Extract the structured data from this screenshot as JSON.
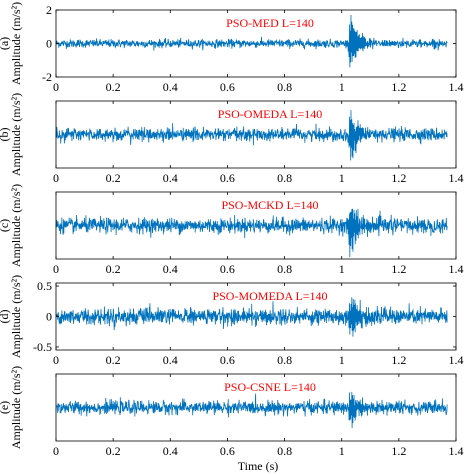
{
  "colors": {
    "signal": "#0072BD",
    "annotation": "#FF0000",
    "axis": "#000000"
  },
  "chart_data": {
    "type": "line",
    "xlabel": "Time (s)",
    "x_ticks": [
      "0",
      "0.2",
      "0.4",
      "0.6",
      "0.8",
      "1",
      "1.2",
      "1.4"
    ],
    "xlim": [
      0,
      1.4
    ],
    "signal_length_s": 1.37,
    "panels": [
      {
        "letter": "(a)",
        "ylabel": "Amplitude (m/s²)",
        "annotation": "PSO-MED L=140",
        "ylim": [
          -2,
          2
        ],
        "y_ticks": [
          2,
          0,
          -2
        ],
        "y_tick_labels": [
          "2",
          "0",
          "-2"
        ],
        "noise_amplitude": 0.22,
        "impulse_time_s": 1.035,
        "impulse_peak_pos": 1.95,
        "impulse_peak_neg": -1.6
      },
      {
        "letter": "(b)",
        "ylabel": "Amplitude (m/s²)",
        "annotation": "PSO-OMEDA L=140",
        "ylim": [
          -2,
          2
        ],
        "y_ticks": [],
        "y_tick_labels": [],
        "noise_amplitude": 0.35,
        "impulse_time_s": 1.035,
        "impulse_peak_pos": 1.3,
        "impulse_peak_neg": -1.9
      },
      {
        "letter": "(c)",
        "ylabel": "Amplitude (m/s²)",
        "annotation": "PSO-MCKD L=140",
        "ylim": [
          -2,
          2
        ],
        "y_ticks": [],
        "y_tick_labels": [],
        "noise_amplitude": 0.4,
        "impulse_time_s": 1.035,
        "impulse_peak_pos": 1.4,
        "impulse_peak_neg": -1.8
      },
      {
        "letter": "(d)",
        "ylabel": "Amplitude (m/s²)",
        "annotation": "PSO-MOMEDA L=140",
        "ylim": [
          -0.55,
          0.55
        ],
        "y_ticks": [
          0.5,
          0,
          -0.5
        ],
        "y_tick_labels": [
          "0.5",
          "0",
          "-0.5"
        ],
        "noise_amplitude": 0.12,
        "impulse_time_s": 1.035,
        "impulse_peak_pos": 0.35,
        "impulse_peak_neg": -0.38
      },
      {
        "letter": "(e)",
        "ylabel": "Amplitude (m/s²)",
        "annotation": "PSO-CSNE L=140",
        "ylim": [
          -2,
          2
        ],
        "y_ticks": [],
        "y_tick_labels": [],
        "noise_amplitude": 0.35,
        "impulse_time_s": 1.035,
        "impulse_peak_pos": 1.2,
        "impulse_peak_neg": -1.3
      }
    ]
  }
}
